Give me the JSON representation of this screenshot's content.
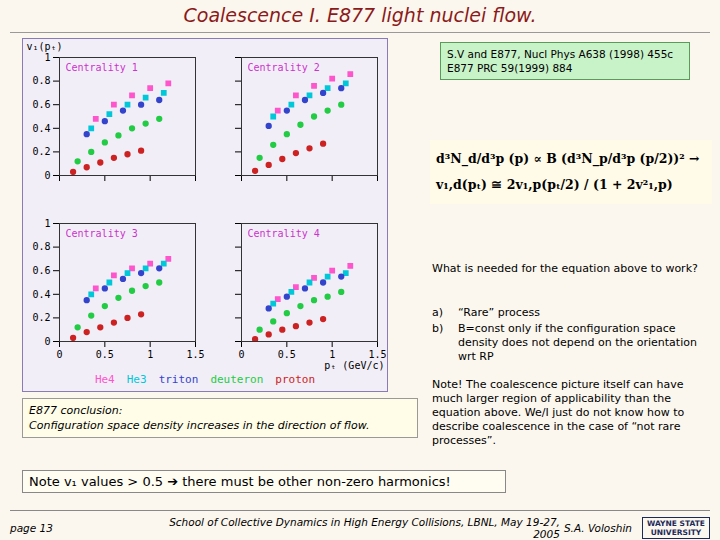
{
  "chart_data": [
    {
      "type": "scatter",
      "title": "Centrality 1",
      "ylabel": "v₁(pₜ)",
      "xlim": [
        0,
        1.5
      ],
      "xticks": [
        0,
        0.5,
        1,
        1.5
      ],
      "ylim": [
        0,
        1
      ],
      "yticks": [
        0,
        0.2,
        0.4,
        0.6,
        0.8,
        1
      ],
      "tick_labels": "y",
      "legend": "bottom",
      "series": [
        {
          "name": "He4",
          "color": "#ff55cc",
          "marker": "square",
          "x": [
            0.4,
            0.6,
            0.8,
            1.0,
            1.2
          ],
          "values": [
            0.48,
            0.6,
            0.68,
            0.74,
            0.78
          ]
        },
        {
          "name": "He3",
          "color": "#00c8d8",
          "marker": "square",
          "x": [
            0.35,
            0.55,
            0.75,
            0.95,
            1.15
          ],
          "values": [
            0.4,
            0.52,
            0.6,
            0.66,
            0.7
          ]
        },
        {
          "name": "triton",
          "color": "#3344cc",
          "marker": "circle",
          "x": [
            0.3,
            0.5,
            0.7,
            0.9,
            1.1
          ],
          "values": [
            0.35,
            0.46,
            0.55,
            0.6,
            0.64
          ]
        },
        {
          "name": "deuteron",
          "color": "#22cc44",
          "marker": "circle",
          "x": [
            0.2,
            0.35,
            0.5,
            0.65,
            0.8,
            0.95,
            1.1
          ],
          "values": [
            0.12,
            0.2,
            0.28,
            0.34,
            0.4,
            0.44,
            0.48
          ]
        },
        {
          "name": "proton",
          "color": "#cc2222",
          "marker": "circle",
          "x": [
            0.15,
            0.3,
            0.45,
            0.6,
            0.75,
            0.9
          ],
          "values": [
            0.03,
            0.07,
            0.11,
            0.15,
            0.18,
            0.21
          ]
        }
      ]
    },
    {
      "type": "scatter",
      "title": "Centrality 2",
      "xlim": [
        0,
        1.5
      ],
      "xticks": [
        0,
        0.5,
        1,
        1.5
      ],
      "ylim": [
        0,
        1
      ],
      "yticks": [
        0,
        0.2,
        0.4,
        0.6,
        0.8,
        1
      ],
      "tick_labels": false,
      "series": [
        {
          "name": "He4",
          "color": "#ff55cc",
          "marker": "square",
          "x": [
            0.4,
            0.6,
            0.8,
            1.0,
            1.2
          ],
          "values": [
            0.55,
            0.68,
            0.76,
            0.82,
            0.86
          ]
        },
        {
          "name": "He3",
          "color": "#00c8d8",
          "marker": "square",
          "x": [
            0.35,
            0.55,
            0.75,
            0.95,
            1.15
          ],
          "values": [
            0.5,
            0.6,
            0.68,
            0.74,
            0.78
          ]
        },
        {
          "name": "triton",
          "color": "#3344cc",
          "marker": "circle",
          "x": [
            0.3,
            0.5,
            0.7,
            0.9,
            1.1
          ],
          "values": [
            0.42,
            0.55,
            0.64,
            0.7,
            0.74
          ]
        },
        {
          "name": "deuteron",
          "color": "#22cc44",
          "marker": "circle",
          "x": [
            0.2,
            0.35,
            0.5,
            0.65,
            0.8,
            0.95,
            1.1
          ],
          "values": [
            0.15,
            0.26,
            0.35,
            0.43,
            0.5,
            0.55,
            0.6
          ]
        },
        {
          "name": "proton",
          "color": "#cc2222",
          "marker": "circle",
          "x": [
            0.15,
            0.3,
            0.45,
            0.6,
            0.75,
            0.9
          ],
          "values": [
            0.04,
            0.09,
            0.14,
            0.19,
            0.23,
            0.27
          ]
        }
      ]
    },
    {
      "type": "scatter",
      "title": "Centrality 3",
      "xlim": [
        0,
        1.5
      ],
      "xticks": [
        0,
        0.5,
        1,
        1.5
      ],
      "ylim": [
        0,
        1
      ],
      "yticks": [
        0,
        0.2,
        0.4,
        0.6,
        0.8,
        1
      ],
      "tick_labels": true,
      "series": [
        {
          "name": "He4",
          "color": "#ff55cc",
          "marker": "square",
          "x": [
            0.4,
            0.6,
            0.8,
            1.0,
            1.2
          ],
          "values": [
            0.45,
            0.56,
            0.62,
            0.66,
            0.7
          ]
        },
        {
          "name": "He3",
          "color": "#00c8d8",
          "marker": "square",
          "x": [
            0.35,
            0.55,
            0.75,
            0.95,
            1.15
          ],
          "values": [
            0.4,
            0.5,
            0.58,
            0.62,
            0.66
          ]
        },
        {
          "name": "triton",
          "color": "#3344cc",
          "marker": "circle",
          "x": [
            0.3,
            0.5,
            0.7,
            0.9,
            1.1
          ],
          "values": [
            0.35,
            0.45,
            0.53,
            0.58,
            0.62
          ]
        },
        {
          "name": "deuteron",
          "color": "#22cc44",
          "marker": "circle",
          "x": [
            0.2,
            0.35,
            0.5,
            0.65,
            0.8,
            0.95,
            1.1
          ],
          "values": [
            0.12,
            0.22,
            0.3,
            0.37,
            0.43,
            0.47,
            0.5
          ]
        },
        {
          "name": "proton",
          "color": "#cc2222",
          "marker": "circle",
          "x": [
            0.15,
            0.3,
            0.45,
            0.6,
            0.75,
            0.9
          ],
          "values": [
            0.03,
            0.08,
            0.12,
            0.16,
            0.2,
            0.23
          ]
        }
      ]
    },
    {
      "type": "scatter",
      "title": "Centrality 4",
      "xlabel": "pₜ (GeV/c)",
      "xlim": [
        0,
        1.5
      ],
      "xticks": [
        0,
        0.5,
        1,
        1.5
      ],
      "ylim": [
        0,
        1
      ],
      "yticks": [
        0,
        0.2,
        0.4,
        0.6,
        0.8,
        1
      ],
      "tick_labels": "x",
      "series": [
        {
          "name": "He4",
          "color": "#ff55cc",
          "marker": "square",
          "x": [
            0.4,
            0.6,
            0.8,
            1.0,
            1.2
          ],
          "values": [
            0.36,
            0.46,
            0.54,
            0.6,
            0.64
          ]
        },
        {
          "name": "He3",
          "color": "#00c8d8",
          "marker": "square",
          "x": [
            0.35,
            0.55,
            0.75,
            0.95,
            1.15
          ],
          "values": [
            0.32,
            0.42,
            0.5,
            0.55,
            0.58
          ]
        },
        {
          "name": "triton",
          "color": "#3344cc",
          "marker": "circle",
          "x": [
            0.3,
            0.5,
            0.7,
            0.9,
            1.1
          ],
          "values": [
            0.28,
            0.38,
            0.45,
            0.5,
            0.55
          ]
        },
        {
          "name": "deuteron",
          "color": "#22cc44",
          "marker": "circle",
          "x": [
            0.2,
            0.35,
            0.5,
            0.65,
            0.8,
            0.95,
            1.1
          ],
          "values": [
            0.1,
            0.17,
            0.24,
            0.3,
            0.35,
            0.38,
            0.42
          ]
        },
        {
          "name": "proton",
          "color": "#cc2222",
          "marker": "circle",
          "x": [
            0.15,
            0.3,
            0.45,
            0.6,
            0.75,
            0.9
          ],
          "values": [
            0.02,
            0.06,
            0.1,
            0.13,
            0.16,
            0.19
          ]
        }
      ]
    }
  ],
  "slide": {
    "title": "Coalescence I. E877 light nuclei flow.",
    "reference": [
      "S.V and E877, Nucl Phys A638 (1998) 455c",
      "E877 PRC 59(1999) 884"
    ],
    "equation": [
      "d³N_d/d³p (p) ∝ B (d³N_p/d³p (p/2))² →",
      "v₁,d(pₜ) ≅ 2v₁,p(pₜ/2) / (1 + 2v²₁,p)"
    ],
    "question": "What is needed for the equation above to work?",
    "conditions": [
      {
        "label": "a)",
        "text": "“Rare” process"
      },
      {
        "label": "b)",
        "text": "B=const only if the configuration space density does not depend on the orientation wrt RP"
      }
    ],
    "remark": "Note! The coalescence picture itself can have much larger region of applicability than the equation above. We/I just do not know how to describe coalescence in the case of “not rare processes”.",
    "conclusion": [
      "E877 conclusion:",
      "Configuration space density increases in the direction of flow."
    ],
    "note": "Note v₁ values > 0.5 ➔ there must be other non-zero harmonics!",
    "footer": {
      "page": "page   13",
      "event": "School of Collective Dynamics in High Energy Collisions, LBNL, May 19-27, 2005",
      "author": "S.A. Voloshin",
      "logo": "WAYNE STATE UNIVERSITY"
    }
  }
}
